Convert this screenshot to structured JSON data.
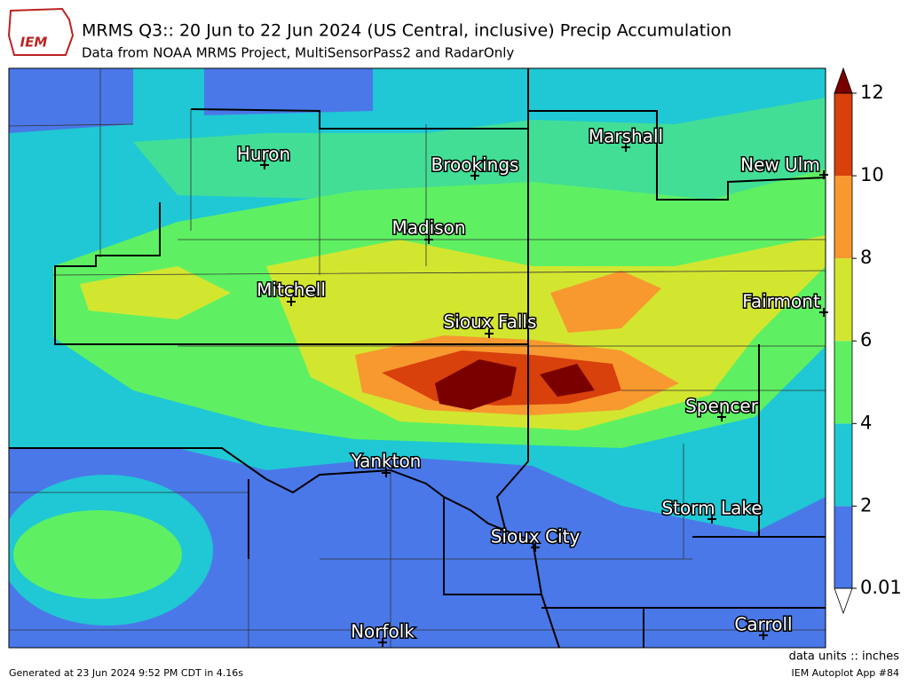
{
  "logo": "IEM",
  "title": "MRMS Q3:: 20 Jun to 22 Jun 2024 (US Central, inclusive) Precip Accumulation",
  "subtitle": "Data from NOAA MRMS Project, MultiSensorPass2 and RadarOnly",
  "cities": [
    "Huron",
    "Brookings",
    "Marshall",
    "New Ulm",
    "Madison",
    "Mitchell",
    "Fairmont",
    "Sioux Falls",
    "Spencer",
    "Yankton",
    "Sioux City",
    "Storm Lake",
    "Norfolk",
    "Carroll"
  ],
  "colorbar": {
    "ticks": [
      0.01,
      2,
      4,
      6,
      8,
      10,
      12
    ],
    "colors": [
      "#4a78e8",
      "#1fc8d4",
      "#5ef062",
      "#d2e630",
      "#f7992f",
      "#d8400c"
    ],
    "over_color": "#7a0000",
    "under_color": "#ffffff"
  },
  "units": "data units :: inches",
  "footer_left": "Generated at 23 Jun 2024 9:52 PM CDT in 4.16s",
  "footer_right": "IEM Autoplot App #84"
}
